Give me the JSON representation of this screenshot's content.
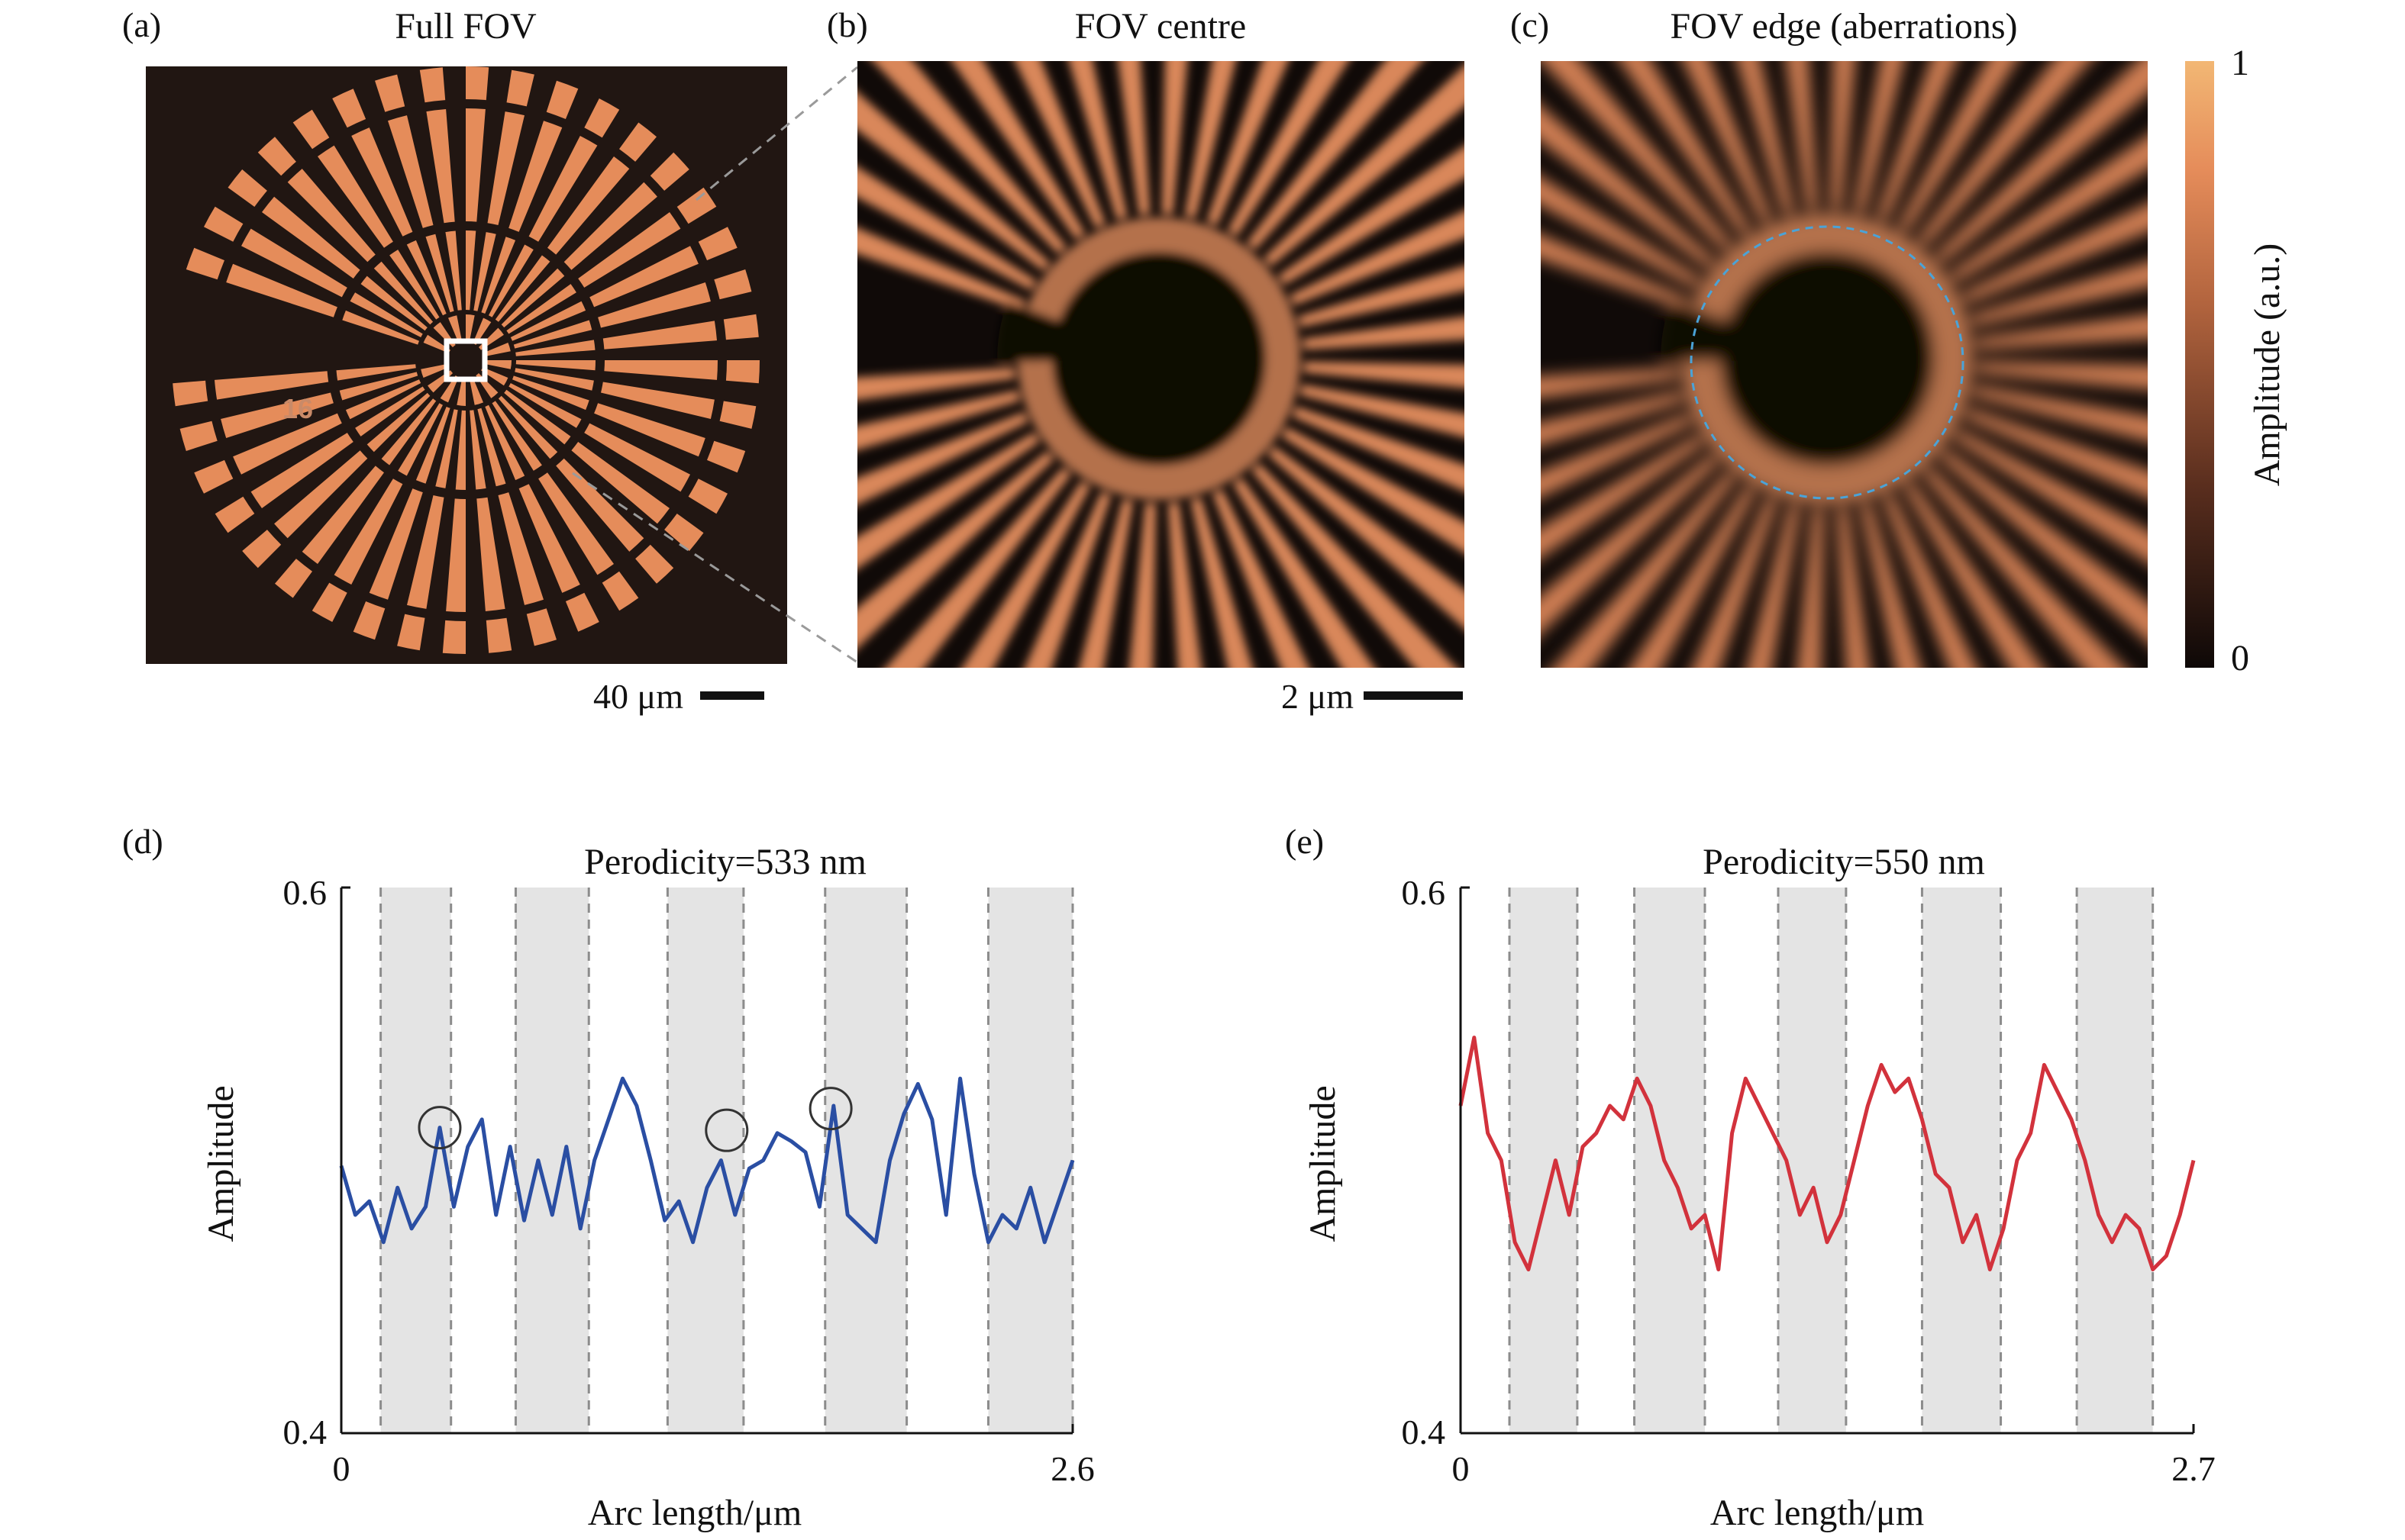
{
  "panels": {
    "a": {
      "tag": "(a)",
      "title": "Full FOV",
      "scale_label": "40 μm",
      "stamp": "16"
    },
    "b": {
      "tag": "(b)",
      "title": "FOV centre",
      "scale_label": "2 μm"
    },
    "c": {
      "tag": "(c)",
      "title": "FOV edge (aberrations)"
    }
  },
  "colorbar": {
    "label": "Amplitude (a.u.)",
    "max_label": "1",
    "min_label": "0",
    "colors": [
      "#0e0807",
      "#5a2e1e",
      "#b2643e",
      "#e58c5a",
      "#f2b774"
    ]
  },
  "colors": {
    "image_bg": "#211612",
    "spoke": "#e58c5a",
    "blur_spoke": "#d9875a",
    "ring": "#b4714c",
    "blue_line": "#2a4ea3",
    "red_line": "#d2323c",
    "shade": "#e4e4e4"
  },
  "chart_data": [
    {
      "type": "line",
      "tag": "(d)",
      "title": "Perodicity=533 nm",
      "xlabel": "Arc length/μm",
      "ylabel": "Amplitude",
      "xlim": [
        0,
        2.6
      ],
      "ylim": [
        0.4,
        0.6
      ],
      "x_tick_labels": [
        "0",
        "2.6"
      ],
      "y_tick_labels": [
        "0.4",
        "0.6"
      ],
      "shaded_bands": [
        [
          0.14,
          0.39
        ],
        [
          0.62,
          0.88
        ],
        [
          1.16,
          1.43
        ],
        [
          1.72,
          2.01
        ],
        [
          2.3,
          2.6
        ]
      ],
      "circled_points": [
        [
          0.35,
          0.512
        ],
        [
          1.37,
          0.511
        ],
        [
          1.74,
          0.519
        ]
      ],
      "series": [
        {
          "color": "#2a4ea3",
          "x": [
            0,
            0.05,
            0.1,
            0.15,
            0.2,
            0.25,
            0.3,
            0.35,
            0.4,
            0.45,
            0.5,
            0.55,
            0.6,
            0.65,
            0.7,
            0.75,
            0.8,
            0.85,
            0.9,
            0.95,
            1.0,
            1.05,
            1.1,
            1.15,
            1.2,
            1.25,
            1.3,
            1.35,
            1.4,
            1.45,
            1.5,
            1.55,
            1.6,
            1.65,
            1.7,
            1.75,
            1.8,
            1.85,
            1.9,
            1.95,
            2.0,
            2.05,
            2.1,
            2.15,
            2.2,
            2.25,
            2.3,
            2.35,
            2.4,
            2.45,
            2.5,
            2.55,
            2.6
          ],
          "y": [
            0.498,
            0.48,
            0.485,
            0.47,
            0.49,
            0.475,
            0.483,
            0.512,
            0.483,
            0.505,
            0.515,
            0.48,
            0.505,
            0.478,
            0.5,
            0.48,
            0.505,
            0.475,
            0.5,
            0.515,
            0.53,
            0.52,
            0.5,
            0.478,
            0.485,
            0.47,
            0.49,
            0.5,
            0.48,
            0.497,
            0.5,
            0.51,
            0.507,
            0.503,
            0.483,
            0.52,
            0.48,
            0.475,
            0.47,
            0.5,
            0.517,
            0.528,
            0.515,
            0.48,
            0.53,
            0.495,
            0.47,
            0.48,
            0.475,
            0.49,
            0.47,
            0.485,
            0.5
          ]
        }
      ]
    },
    {
      "type": "line",
      "tag": "(e)",
      "title": "Perodicity=550 nm",
      "xlabel": "Arc length/μm",
      "ylabel": "Amplitude",
      "xlim": [
        0,
        2.7
      ],
      "ylim": [
        0.4,
        0.6
      ],
      "x_tick_labels": [
        "0",
        "2.7"
      ],
      "y_tick_labels": [
        "0.4",
        "0.6"
      ],
      "shaded_bands": [
        [
          0.18,
          0.43
        ],
        [
          0.64,
          0.9
        ],
        [
          1.17,
          1.42
        ],
        [
          1.7,
          1.99
        ],
        [
          2.27,
          2.55
        ]
      ],
      "series": [
        {
          "color": "#d2323c",
          "x": [
            0,
            0.05,
            0.1,
            0.15,
            0.2,
            0.25,
            0.3,
            0.35,
            0.4,
            0.45,
            0.5,
            0.55,
            0.6,
            0.65,
            0.7,
            0.75,
            0.8,
            0.85,
            0.9,
            0.95,
            1.0,
            1.05,
            1.1,
            1.15,
            1.2,
            1.25,
            1.3,
            1.35,
            1.4,
            1.45,
            1.5,
            1.55,
            1.6,
            1.65,
            1.7,
            1.75,
            1.8,
            1.85,
            1.9,
            1.95,
            2.0,
            2.05,
            2.1,
            2.15,
            2.2,
            2.25,
            2.3,
            2.35,
            2.4,
            2.45,
            2.5,
            2.55,
            2.6,
            2.65,
            2.7
          ],
          "y": [
            0.52,
            0.545,
            0.51,
            0.5,
            0.47,
            0.46,
            0.48,
            0.5,
            0.48,
            0.505,
            0.51,
            0.52,
            0.515,
            0.53,
            0.52,
            0.5,
            0.49,
            0.475,
            0.48,
            0.46,
            0.51,
            0.53,
            0.52,
            0.51,
            0.5,
            0.48,
            0.49,
            0.47,
            0.48,
            0.5,
            0.52,
            0.535,
            0.525,
            0.53,
            0.515,
            0.495,
            0.49,
            0.47,
            0.48,
            0.46,
            0.475,
            0.5,
            0.51,
            0.535,
            0.525,
            0.515,
            0.5,
            0.48,
            0.47,
            0.48,
            0.475,
            0.46,
            0.465,
            0.48,
            0.5
          ]
        }
      ]
    }
  ]
}
